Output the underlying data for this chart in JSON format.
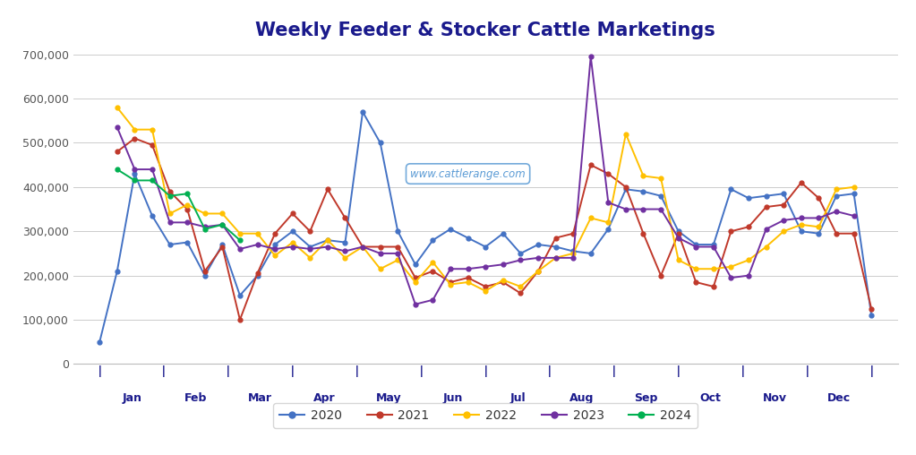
{
  "title": "Weekly Feeder & Stocker Cattle Marketings",
  "title_color": "#1a1a8c",
  "title_fontsize": 15,
  "title_fontweight": "bold",
  "background_color": "#ffffff",
  "grid_color": "#cccccc",
  "ytick_labels": [
    "0",
    "100,000",
    "200,000",
    "300,000",
    "400,000",
    "500,000",
    "600,000",
    "700,000"
  ],
  "months": [
    "Jan",
    "Feb",
    "Mar",
    "Apr",
    "May",
    "Jun",
    "Jul",
    "Aug",
    "Sep",
    "Oct",
    "Nov",
    "Dec"
  ],
  "watermark": "www.cattlerange.com",
  "colors": {
    "2020": "#4472c4",
    "2021": "#c0392b",
    "2022": "#ffc000",
    "2023": "#7030a0",
    "2024": "#00b050"
  },
  "legend_order": [
    "2020",
    "2021",
    "2022",
    "2023",
    "2024"
  ],
  "axis_label_color": "#1a1a8c",
  "tick_fontsize": 9,
  "series_2020": [
    50000,
    210000,
    430000,
    335000,
    270000,
    275000,
    200000,
    270000,
    155000,
    200000,
    270000,
    300000,
    265000,
    280000,
    275000,
    570000,
    500000,
    300000,
    225000,
    280000,
    305000,
    285000,
    265000,
    295000,
    250000,
    270000,
    265000,
    255000,
    250000,
    305000,
    395000,
    390000,
    380000,
    300000,
    270000,
    270000,
    395000,
    375000,
    380000,
    385000,
    300000,
    295000,
    380000,
    385000,
    110000
  ],
  "series_2021": [
    null,
    480000,
    510000,
    495000,
    390000,
    350000,
    210000,
    265000,
    100000,
    205000,
    295000,
    340000,
    300000,
    395000,
    330000,
    265000,
    265000,
    265000,
    195000,
    210000,
    185000,
    195000,
    175000,
    185000,
    160000,
    210000,
    285000,
    295000,
    450000,
    430000,
    400000,
    295000,
    200000,
    295000,
    185000,
    175000,
    300000,
    310000,
    355000,
    360000,
    410000,
    375000,
    295000,
    295000,
    125000
  ],
  "series_2022": [
    null,
    580000,
    530000,
    530000,
    340000,
    360000,
    340000,
    340000,
    295000,
    295000,
    245000,
    275000,
    240000,
    280000,
    240000,
    265000,
    215000,
    235000,
    185000,
    230000,
    180000,
    185000,
    165000,
    190000,
    175000,
    210000,
    240000,
    250000,
    330000,
    320000,
    520000,
    425000,
    420000,
    235000,
    215000,
    215000,
    220000,
    235000,
    265000,
    300000,
    315000,
    310000,
    395000,
    400000,
    null
  ],
  "series_2023": [
    null,
    535000,
    440000,
    440000,
    320000,
    320000,
    310000,
    315000,
    260000,
    270000,
    260000,
    265000,
    260000,
    265000,
    255000,
    265000,
    250000,
    250000,
    135000,
    145000,
    215000,
    215000,
    220000,
    225000,
    235000,
    240000,
    240000,
    240000,
    695000,
    365000,
    350000,
    350000,
    350000,
    285000,
    265000,
    265000,
    195000,
    200000,
    305000,
    325000,
    330000,
    330000,
    345000,
    335000,
    null
  ],
  "series_2024": [
    null,
    440000,
    415000,
    415000,
    380000,
    385000,
    305000,
    315000,
    280000,
    null,
    null,
    null,
    null,
    null,
    null,
    null,
    null,
    null,
    null,
    null,
    null,
    null,
    null,
    null,
    null,
    null,
    null,
    null,
    null,
    null,
    null,
    null,
    null,
    null,
    null,
    null,
    null,
    null,
    null,
    null,
    null,
    null,
    null,
    null,
    null
  ],
  "n_points": 45,
  "month_boundaries": [
    0,
    3.5,
    7.2,
    11,
    14.8,
    18.5,
    22.3,
    26.2,
    30,
    33.8,
    37.5,
    41.3,
    45
  ],
  "pipe_positions": [
    0,
    3.5,
    7.2,
    11,
    14.8,
    18.5,
    22.3,
    26.2,
    30,
    33.8,
    37.5,
    41.3,
    45
  ]
}
